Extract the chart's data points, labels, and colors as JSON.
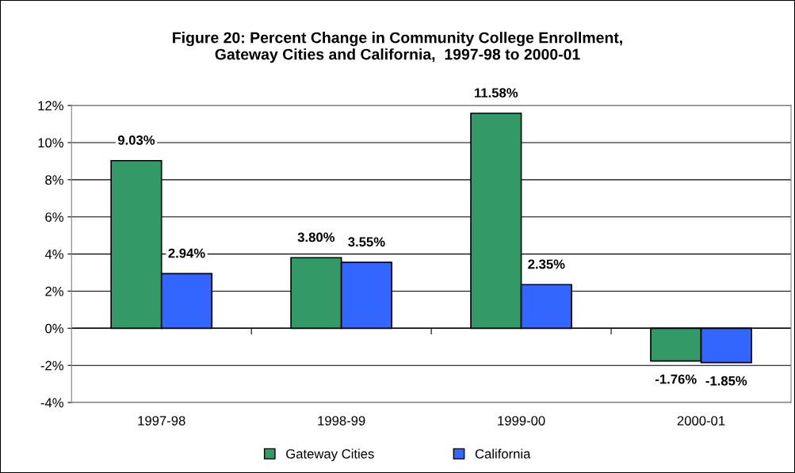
{
  "chart_data": {
    "type": "bar",
    "title": "Figure 20: Percent Change in Community College Enrollment,\nGateway Cities and California,  1997-98 to 2000-01",
    "categories": [
      "1997-98",
      "1998-99",
      "1999-00",
      "2000-01"
    ],
    "series": [
      {
        "name": "Gateway Cities",
        "color": "#339966",
        "values": [
          9.03,
          3.8,
          11.58,
          -1.76
        ],
        "value_labels": [
          "9.03%",
          "3.80%",
          "11.58%",
          "-1.76%"
        ]
      },
      {
        "name": "California",
        "color": "#3366ff",
        "values": [
          2.94,
          3.55,
          2.35,
          -1.85
        ],
        "value_labels": [
          "2.94%",
          "3.55%",
          "2.35%",
          "-1.85%"
        ]
      }
    ],
    "ylim": [
      -4,
      12
    ],
    "yticks": [
      {
        "value": -4,
        "label": "-4%"
      },
      {
        "value": -2,
        "label": "-2%"
      },
      {
        "value": 0,
        "label": "0%"
      },
      {
        "value": 2,
        "label": "2%"
      },
      {
        "value": 4,
        "label": "4%"
      },
      {
        "value": 6,
        "label": "6%"
      },
      {
        "value": 8,
        "label": "8%"
      },
      {
        "value": 10,
        "label": "10%"
      },
      {
        "value": 12,
        "label": "12%"
      }
    ],
    "grid": "y",
    "legend": "bottom"
  }
}
